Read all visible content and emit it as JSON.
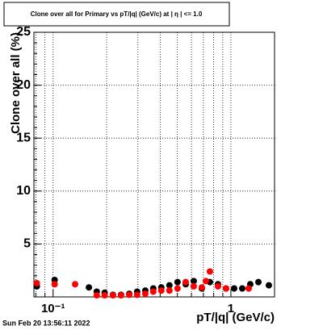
{
  "chart_data": {
    "type": "scatter",
    "title": "Clone  over all for Primary vs pT/|q| (GeV/c) at | η | <= 1.0",
    "xlabel": "pT/|q| (GeV/c)",
    "ylabel": "Clone  over all (%)",
    "date": "Sun Feb 20 13:56:11 2022",
    "xlog": true,
    "grid": true,
    "xlim": [
      0.078,
      1.76
    ],
    "ylim": [
      0,
      25
    ],
    "xticks": [
      {
        "value": 0.1,
        "label": "10⁻¹"
      },
      1
    ],
    "xminor": [
      0.08,
      0.09,
      0.2,
      0.3,
      0.4,
      0.5,
      0.6,
      0.7,
      0.8,
      0.9
    ],
    "yticks": [
      5,
      10,
      15,
      20,
      25
    ],
    "series": [
      {
        "color": "#000000",
        "x": [
          0.081,
          0.102,
          0.159,
          0.176,
          0.195,
          0.217,
          0.241,
          0.268,
          0.297,
          0.33,
          0.366,
          0.406,
          0.451,
          0.501,
          0.557,
          0.618,
          0.686,
          0.762,
          0.846,
          0.939,
          1.043,
          1.158,
          1.285,
          1.428,
          1.635
        ],
        "values": [
          1.0,
          1.6,
          0.9,
          0.5,
          0.4,
          0.2,
          0.2,
          0.3,
          0.5,
          0.6,
          0.8,
          0.9,
          1.1,
          1.4,
          1.2,
          1.5,
          0.8,
          1.4,
          1.2,
          0.8,
          0.8,
          0.8,
          1.2,
          1.4,
          1.1
        ]
      },
      {
        "color": "#ff0000",
        "x": [
          0.081,
          0.102,
          0.133,
          0.176,
          0.195,
          0.217,
          0.241,
          0.268,
          0.297,
          0.33,
          0.366,
          0.406,
          0.451,
          0.501,
          0.557,
          0.618,
          0.686,
          0.723,
          0.762,
          0.846,
          0.939,
          1.259
        ],
        "values": [
          1.3,
          1.2,
          1.2,
          0.15,
          0.15,
          0.15,
          0.15,
          0.2,
          0.2,
          0.3,
          0.5,
          0.6,
          0.6,
          0.8,
          1.4,
          1.0,
          0.9,
          1.5,
          2.4,
          1.0,
          0.8,
          0.8
        ]
      }
    ]
  }
}
